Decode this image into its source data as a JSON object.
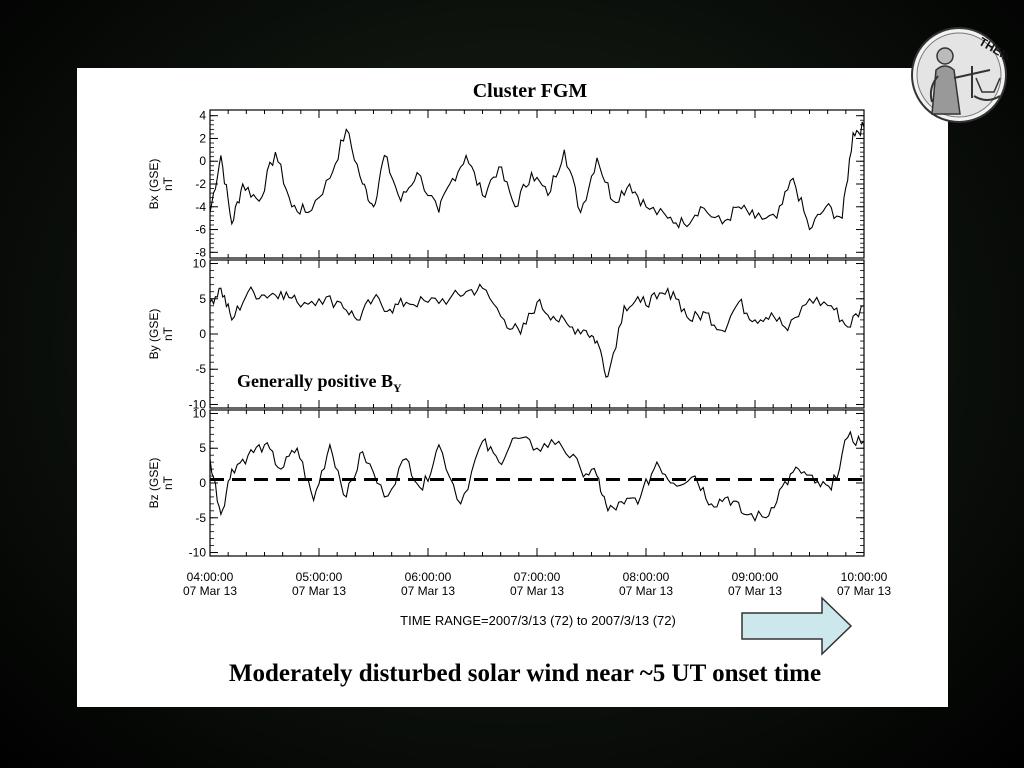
{
  "logo": {
    "text": "THEMIS",
    "icon": "themis-justice-figure-icon"
  },
  "colors": {
    "background": "#000000",
    "panel": "#ffffff",
    "arrow_fill": "#cde8ec",
    "arrow_stroke": "#333333",
    "trace": "#000000"
  },
  "caption": "Moderately disturbed solar wind near ~5 UT onset time",
  "annotation": {
    "text": "Generally positive B",
    "subscript": "Y"
  },
  "time_range_label": "TIME RANGE=2007/3/13 (72) to 2007/3/13 (72)",
  "chart_data": {
    "type": "line",
    "title": "Cluster FGM",
    "x_ticks": [
      {
        "time": "04:00:00",
        "date": "07 Mar 13"
      },
      {
        "time": "05:00:00",
        "date": "07 Mar 13"
      },
      {
        "time": "06:00:00",
        "date": "07 Mar 13"
      },
      {
        "time": "07:00:00",
        "date": "07 Mar 13"
      },
      {
        "time": "08:00:00",
        "date": "07 Mar 13"
      },
      {
        "time": "09:00:00",
        "date": "07 Mar 13"
      },
      {
        "time": "10:00:00",
        "date": "07 Mar 13"
      }
    ],
    "x_range_hours": [
      4,
      10
    ],
    "panels": [
      {
        "ylabel": "Bx (GSE)",
        "unit": "nT",
        "ylim": [
          -8.5,
          4.5
        ],
        "ticks": [
          4,
          2,
          0,
          -2,
          -4,
          -6,
          -8
        ],
        "x": [
          4.0,
          4.1,
          4.2,
          4.3,
          4.45,
          4.6,
          4.75,
          4.9,
          5.1,
          5.25,
          5.4,
          5.5,
          5.6,
          5.75,
          5.9,
          6.1,
          6.2,
          6.35,
          6.5,
          6.65,
          6.8,
          6.95,
          7.1,
          7.25,
          7.4,
          7.55,
          7.7,
          7.85,
          8.0,
          8.2,
          8.35,
          8.5,
          8.7,
          8.85,
          9.0,
          9.2,
          9.35,
          9.5,
          9.65,
          9.8,
          9.9,
          10.0
        ],
        "y": [
          -4.5,
          0.5,
          -5.5,
          -2,
          -3.5,
          0.8,
          -4,
          -4.5,
          -1.5,
          2.8,
          -2,
          -4,
          0.5,
          -3.5,
          -1,
          -4.5,
          -2,
          0.5,
          -3,
          -0.5,
          -4,
          -1,
          -3,
          1,
          -4.5,
          0.3,
          -3.5,
          -2,
          -4,
          -5,
          -5.5,
          -4,
          -5.5,
          -4,
          -5,
          -5,
          -1.5,
          -6,
          -4,
          -5,
          2.5,
          3
        ]
      },
      {
        "ylabel": "By (GSE)",
        "unit": "nT",
        "ylim": [
          -10.5,
          10.5
        ],
        "ticks": [
          10,
          5,
          0,
          -5,
          -10
        ],
        "x": [
          4.0,
          4.1,
          4.2,
          4.35,
          4.5,
          4.65,
          4.8,
          5.0,
          5.2,
          5.35,
          5.5,
          5.65,
          5.8,
          6.0,
          6.2,
          6.35,
          6.5,
          6.7,
          6.85,
          7.0,
          7.15,
          7.3,
          7.45,
          7.55,
          7.65,
          7.8,
          7.95,
          8.1,
          8.25,
          8.4,
          8.55,
          8.7,
          8.85,
          9.0,
          9.15,
          9.3,
          9.5,
          9.7,
          9.85,
          10.0
        ],
        "y": [
          4.5,
          6.5,
          2,
          6,
          5.5,
          6,
          4.5,
          5,
          4.5,
          2,
          5,
          3.5,
          4.5,
          4.5,
          5,
          6,
          6.5,
          2,
          0,
          4.5,
          2.5,
          1,
          0.5,
          -1,
          -6,
          4,
          4.5,
          5,
          6,
          2,
          3,
          0.5,
          4.5,
          2,
          3,
          0.5,
          5,
          4,
          1,
          4
        ]
      },
      {
        "ylabel": "Bz (GSE)",
        "unit": "nT",
        "ylim": [
          -10.5,
          10.5
        ],
        "ticks": [
          10,
          5,
          0,
          -5,
          -10
        ],
        "reference_line": 0.5,
        "x": [
          4.0,
          4.1,
          4.2,
          4.35,
          4.5,
          4.65,
          4.8,
          4.95,
          5.1,
          5.25,
          5.4,
          5.6,
          5.8,
          5.95,
          6.1,
          6.3,
          6.5,
          6.65,
          6.8,
          7.0,
          7.2,
          7.4,
          7.55,
          7.65,
          7.8,
          7.95,
          8.1,
          8.25,
          8.45,
          8.6,
          8.75,
          8.9,
          9.1,
          9.25,
          9.4,
          9.55,
          9.7,
          9.85,
          10.0
        ],
        "y": [
          3.5,
          -4.5,
          2,
          4,
          5.5,
          2,
          5,
          -2.5,
          5.5,
          -2,
          4.5,
          -2,
          3.5,
          -1,
          5.5,
          -3,
          6,
          3,
          6.5,
          5,
          6,
          2,
          1,
          -4,
          -3,
          -2,
          3,
          0,
          1,
          -3,
          -2,
          -4.5,
          -5,
          -0.5,
          2,
          0,
          -1,
          6.5,
          6
        ]
      }
    ]
  }
}
